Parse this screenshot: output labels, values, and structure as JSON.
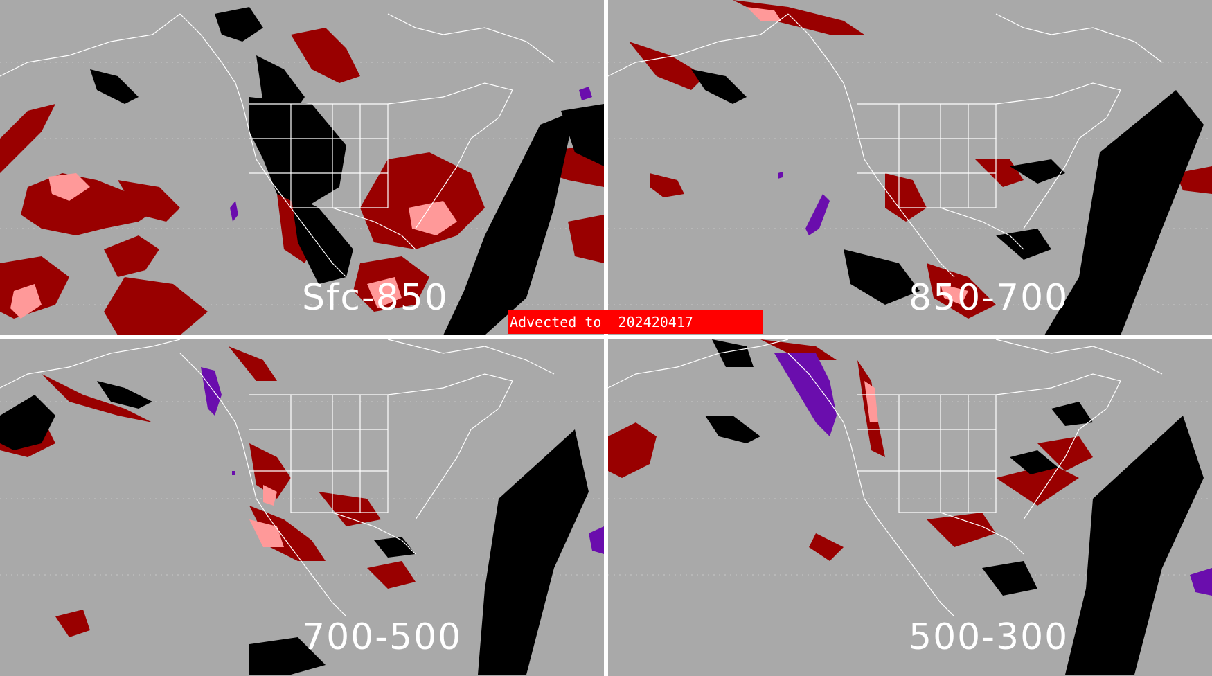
{
  "banner": {
    "text": "Advected to  202420417",
    "color": "#ff0000"
  },
  "panels": [
    {
      "id": "top-left",
      "label": "Sfc-850"
    },
    {
      "id": "top-right",
      "label": "850-700"
    },
    {
      "id": "bottom-left",
      "label": "700-500"
    },
    {
      "id": "bottom-right",
      "label": "500-300"
    }
  ],
  "colors": {
    "background": "#a9a9a9",
    "coastline": "#ffffff",
    "dark_red": "#990000",
    "pink": "#ff9999",
    "black": "#000000",
    "purple": "#6a0dad",
    "banner": "#ff0000"
  }
}
